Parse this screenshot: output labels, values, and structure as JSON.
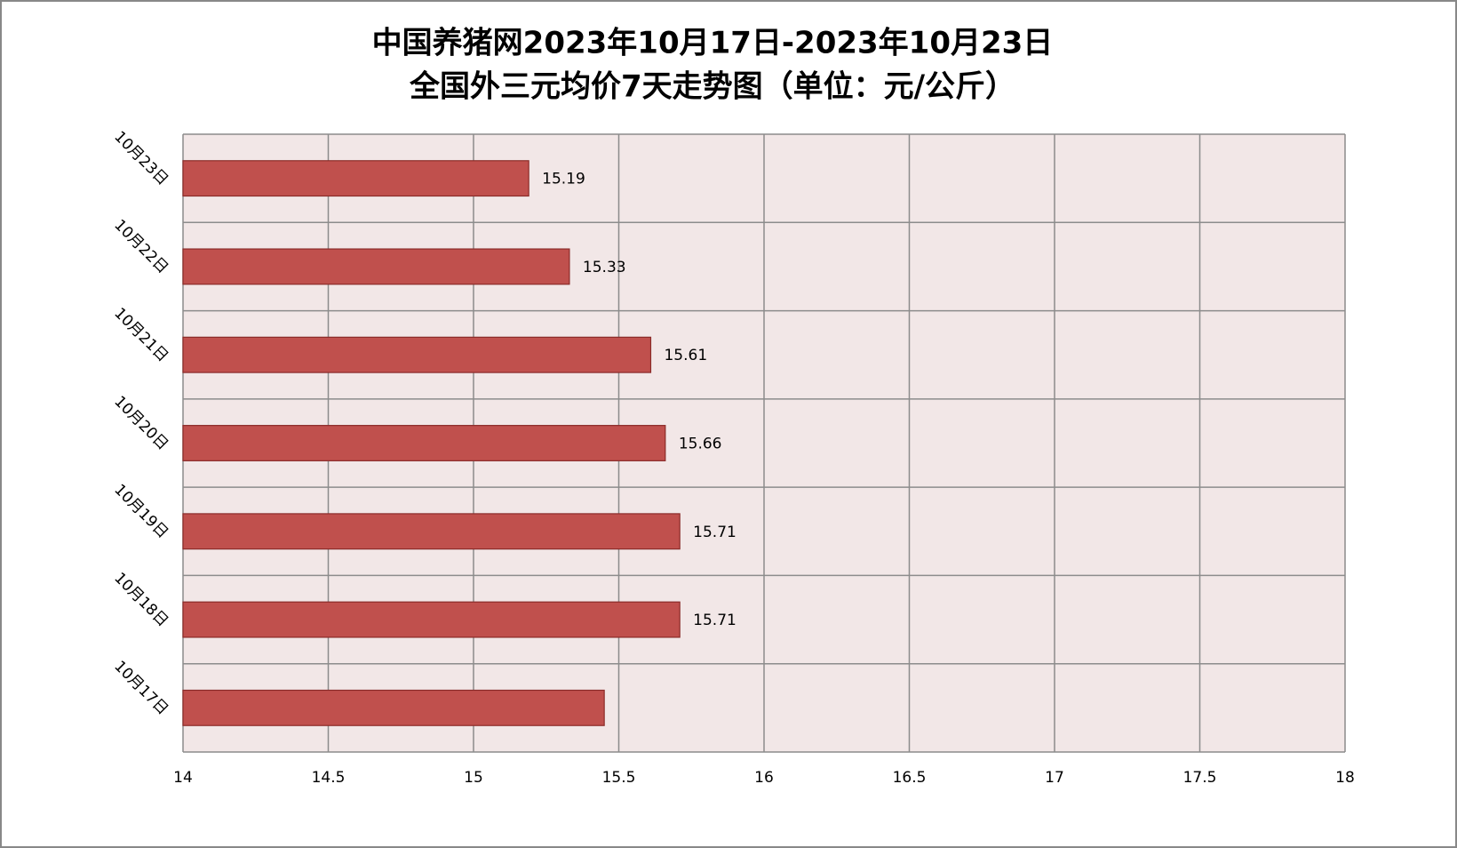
{
  "chart_data": {
    "type": "barh",
    "title": [
      "中国养猪网2023年10月17日-2023年10月23日",
      "全国外三元均价7天走势图（单位：元/公斤）"
    ],
    "categories": [
      "10月17日",
      "10月18日",
      "10月19日",
      "10月20日",
      "10月21日",
      "10月22日",
      "10月23日"
    ],
    "values": [
      15.45,
      15.71,
      15.71,
      15.66,
      15.61,
      15.33,
      15.19
    ],
    "value_labels": [
      null,
      "15.71",
      "15.71",
      "15.66",
      "15.61",
      "15.33",
      "15.19"
    ],
    "color": "#c0504d",
    "xlim": [
      14,
      18
    ],
    "xticks": [
      14,
      14.5,
      15,
      15.5,
      16,
      16.5,
      17,
      17.5,
      18
    ],
    "grid": true
  }
}
